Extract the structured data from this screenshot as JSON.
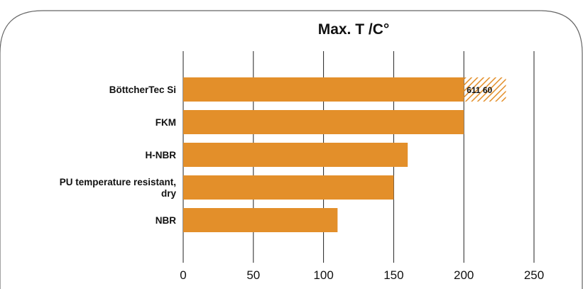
{
  "chart_data": {
    "type": "bar",
    "orientation": "horizontal",
    "title": "Max. T /C°",
    "categories": [
      [
        "BöttcherTec Si"
      ],
      [
        "FKM"
      ],
      [
        "H-NBR"
      ],
      [
        "PU temperature resistant,",
        "dry"
      ],
      [
        "NBR"
      ]
    ],
    "values": [
      200,
      200,
      160,
      150,
      110
    ],
    "extension": {
      "category_index": 0,
      "from": 200,
      "to": 230,
      "label": "611 60",
      "style": "hatched"
    },
    "xlim": [
      0,
      250
    ],
    "xticks": [
      0,
      50,
      100,
      150,
      200,
      250
    ],
    "grid": "vertical",
    "colors": {
      "bar": "#E38F2A",
      "hatch": "#E38F2A",
      "frame": "#555555"
    }
  }
}
